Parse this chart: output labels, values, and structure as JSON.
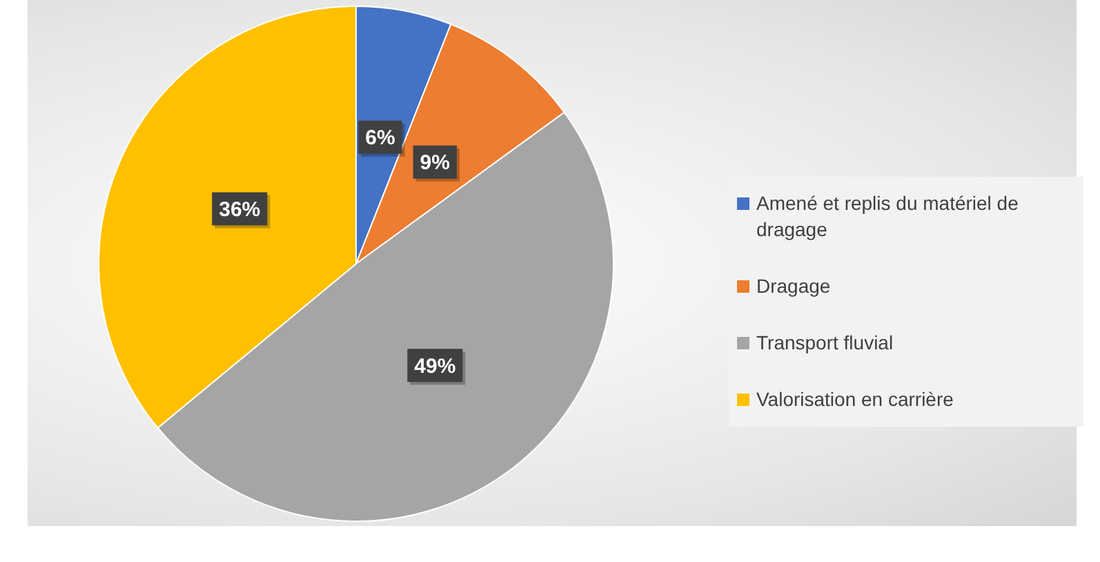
{
  "chart_data": {
    "type": "pie",
    "categories": [
      "Amené et replis du matériel de dragage",
      "Dragage",
      "Transport fluvial",
      "Valorisation en carrière"
    ],
    "values": [
      6,
      9,
      49,
      36
    ],
    "colors": [
      "#4472c4",
      "#ed7d31",
      "#a5a5a5",
      "#ffc000"
    ],
    "value_labels": [
      "6%",
      "9%",
      "49%",
      "36%"
    ],
    "legend": "right"
  }
}
